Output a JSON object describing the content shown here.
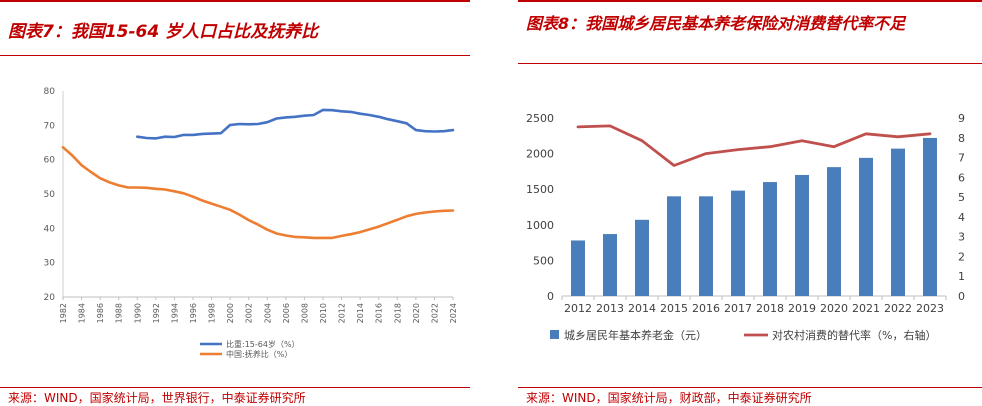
{
  "left": {
    "title": "图表7：我国15-64 岁人口占比及抚养比",
    "source": "来源：WIND，国家统计局，世界银行，中泰证券研究所"
  },
  "right": {
    "title": "图表8：我国城乡居民基本养老保险对消费替代率不足",
    "source": "来源：WIND，国家统计局，财政部，中泰证券研究所"
  },
  "colors": {
    "accent": "#c00000",
    "blue_line": "#4472c4",
    "orange_line": "#ed7d31",
    "bar": "#4a7ebb",
    "red_line": "#c0504d"
  },
  "chart_data": [
    {
      "type": "line",
      "title": "",
      "x": [
        1982,
        1983,
        1984,
        1985,
        1986,
        1987,
        1988,
        1989,
        1990,
        1991,
        1992,
        1993,
        1994,
        1995,
        1996,
        1997,
        1998,
        1999,
        2000,
        2001,
        2002,
        2003,
        2004,
        2005,
        2006,
        2007,
        2008,
        2009,
        2010,
        2011,
        2012,
        2013,
        2014,
        2015,
        2016,
        2017,
        2018,
        2019,
        2020,
        2021,
        2022,
        2023,
        2024
      ],
      "x_ticks": [
        "1982",
        "1984",
        "1986",
        "1988",
        "1990",
        "1992",
        "1994",
        "1996",
        "1998",
        "2000",
        "2002",
        "2004",
        "2006",
        "2008",
        "2010",
        "2012",
        "2014",
        "2016",
        "2018",
        "2020",
        "2022",
        "2024"
      ],
      "ylim": [
        20,
        80
      ],
      "y_ticks": [
        20,
        30,
        40,
        50,
        60,
        70,
        80
      ],
      "grid": false,
      "legend": "bottom",
      "series": [
        {
          "name": "比重:15-64岁（%）",
          "values": [
            null,
            null,
            null,
            null,
            null,
            null,
            null,
            null,
            66.7,
            66.3,
            66.2,
            66.7,
            66.6,
            67.2,
            67.2,
            67.5,
            67.6,
            67.7,
            70.1,
            70.4,
            70.3,
            70.4,
            70.9,
            72.0,
            72.3,
            72.5,
            72.8,
            73.0,
            74.5,
            74.4,
            74.1,
            73.9,
            73.4,
            73.0,
            72.5,
            71.8,
            71.2,
            70.6,
            68.6,
            68.3,
            68.2,
            68.3,
            68.6
          ],
          "color": "#4472c4"
        },
        {
          "name": "中国:抚养比（%）",
          "values": [
            63.6,
            61.2,
            58.4,
            56.4,
            54.6,
            53.4,
            52.5,
            51.9,
            51.9,
            51.8,
            51.5,
            51.3,
            50.8,
            50.2,
            49.2,
            48.1,
            47.2,
            46.3,
            45.4,
            44.0,
            42.4,
            41.1,
            39.6,
            38.5,
            37.9,
            37.5,
            37.4,
            37.2,
            37.2,
            37.2,
            37.8,
            38.3,
            38.9,
            39.7,
            40.5,
            41.5,
            42.5,
            43.5,
            44.2,
            44.6,
            44.9,
            45.1,
            45.2
          ],
          "color": "#ed7d31"
        }
      ]
    },
    {
      "type": "bar",
      "title": "",
      "categories": [
        "2012",
        "2013",
        "2014",
        "2015",
        "2016",
        "2017",
        "2018",
        "2019",
        "2020",
        "2021",
        "2022",
        "2023"
      ],
      "ylim": [
        0,
        2500
      ],
      "y_ticks": [
        0,
        500,
        1000,
        1500,
        2000,
        2500
      ],
      "y2lim": [
        0,
        9
      ],
      "y2_ticks": [
        0,
        1,
        2,
        3,
        4,
        5,
        6,
        7,
        8,
        9
      ],
      "grid": false,
      "legend": "bottom",
      "series": [
        {
          "name": "城乡居民年基本养老金（元）",
          "type": "bar",
          "axis": "left",
          "values": [
            780,
            870,
            1070,
            1400,
            1400,
            1480,
            1600,
            1700,
            1810,
            1940,
            2070,
            2220
          ],
          "color": "#4a7ebb"
        },
        {
          "name": "对农村消费的替代率（%，右轴）",
          "type": "line",
          "axis": "right",
          "values": [
            8.55,
            8.6,
            7.85,
            6.6,
            7.2,
            7.4,
            7.55,
            7.85,
            7.55,
            8.2,
            8.05,
            8.2
          ],
          "color": "#c0504d"
        }
      ]
    }
  ]
}
